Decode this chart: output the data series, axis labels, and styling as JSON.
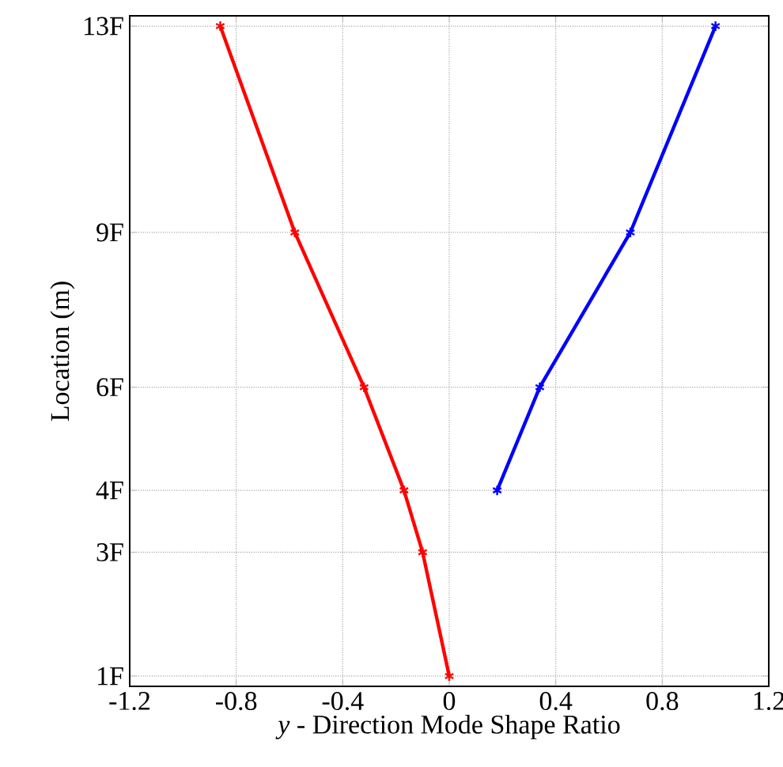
{
  "chart_data": {
    "type": "line",
    "orientation": "horizontal",
    "xlabel": "*y* - Direction Mode Shape Ratio",
    "ylabel": "Location (m)",
    "categories": [
      "13F",
      null,
      null,
      null,
      null,
      null,
      null,
      null,
      null,
      null,
      null,
      null,
      null,
      null,
      null,
      null,
      null,
      null,
      null,
      null,
      "9F",
      null,
      null,
      null,
      null,
      null,
      null,
      null,
      null,
      null,
      null,
      null,
      null,
      null,
      null,
      "6F",
      null,
      null,
      null,
      null,
      null,
      null,
      null,
      null,
      null,
      "4F",
      null,
      null,
      null,
      null,
      null,
      "3F",
      null,
      null,
      null,
      null,
      null,
      null,
      null,
      null,
      null,
      null,
      null,
      "1F"
    ],
    "xlim": [
      -1.2,
      1.2
    ],
    "xticks": [
      -1.2,
      -0.8,
      -0.4,
      0,
      0.4,
      0.8,
      1.2
    ],
    "grid": true,
    "marker": "cross",
    "line_style": "solid",
    "series": [
      {
        "color": "#ff0000",
        "values": [
          -0.86,
          null,
          null,
          null,
          null,
          null,
          null,
          null,
          null,
          null,
          null,
          null,
          null,
          null,
          null,
          null,
          null,
          null,
          null,
          null,
          -0.58,
          null,
          null,
          null,
          null,
          null,
          null,
          null,
          null,
          null,
          null,
          null,
          null,
          null,
          null,
          -0.32,
          null,
          null,
          null,
          null,
          null,
          null,
          null,
          null,
          null,
          -0.17,
          null,
          null,
          null,
          null,
          null,
          -0.1,
          null,
          null,
          null,
          null,
          null,
          null,
          null,
          null,
          null,
          null,
          null,
          0
        ]
      },
      {
        "color": "#0000ff",
        "values": [
          1.0,
          null,
          null,
          null,
          null,
          null,
          null,
          null,
          null,
          null,
          null,
          null,
          null,
          null,
          null,
          null,
          null,
          null,
          null,
          null,
          0.68,
          null,
          null,
          null,
          null,
          null,
          null,
          null,
          null,
          null,
          null,
          null,
          null,
          null,
          null,
          0.34,
          null,
          null,
          null,
          null,
          null,
          null,
          null,
          null,
          null,
          0.18,
          null,
          null,
          null,
          null,
          null,
          null,
          null,
          null,
          null,
          null,
          null,
          null,
          null,
          null,
          null,
          null,
          null,
          null
        ]
      }
    ]
  }
}
